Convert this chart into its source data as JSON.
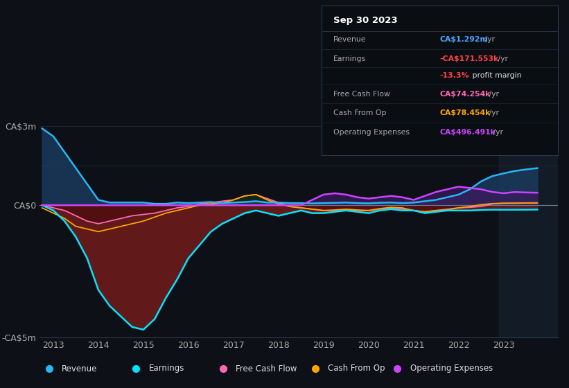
{
  "bg_color": "#0d1117",
  "plot_bg_color": "#0d1117",
  "grid_color": "#1e2a38",
  "zero_line_color": "#4a5568",
  "title_text": "Sep 30 2023",
  "ylim": [
    -5000000,
    3500000
  ],
  "yticks": [
    -5000000,
    0,
    3000000
  ],
  "ytick_labels": [
    "-CA$5m",
    "CA$0",
    "CA$3m"
  ],
  "xlim": [
    2012.7,
    2024.2
  ],
  "xticks": [
    2013,
    2014,
    2015,
    2016,
    2017,
    2018,
    2019,
    2020,
    2021,
    2022,
    2023
  ],
  "legend_items": [
    {
      "label": "Revenue",
      "color": "#29b6f6"
    },
    {
      "label": "Earnings",
      "color": "#00e5ff"
    },
    {
      "label": "Free Cash Flow",
      "color": "#ff69b4"
    },
    {
      "label": "Cash From Op",
      "color": "#ffa500"
    },
    {
      "label": "Operating Expenses",
      "color": "#cc44ff"
    }
  ],
  "series": {
    "x": [
      2012.75,
      2013.0,
      2013.25,
      2013.5,
      2013.75,
      2014.0,
      2014.25,
      2014.5,
      2014.75,
      2015.0,
      2015.25,
      2015.5,
      2015.75,
      2016.0,
      2016.25,
      2016.5,
      2016.75,
      2017.0,
      2017.25,
      2017.5,
      2017.75,
      2018.0,
      2018.25,
      2018.5,
      2018.75,
      2019.0,
      2019.25,
      2019.5,
      2019.75,
      2020.0,
      2020.25,
      2020.5,
      2020.75,
      2021.0,
      2021.25,
      2021.5,
      2021.75,
      2022.0,
      2022.25,
      2022.5,
      2022.75,
      2023.0,
      2023.25,
      2023.5,
      2023.75
    ],
    "revenue": [
      2900000,
      2600000,
      2000000,
      1400000,
      800000,
      200000,
      100000,
      100000,
      100000,
      100000,
      50000,
      50000,
      100000,
      80000,
      100000,
      120000,
      80000,
      100000,
      120000,
      150000,
      100000,
      100000,
      80000,
      80000,
      70000,
      80000,
      90000,
      100000,
      80000,
      70000,
      90000,
      100000,
      80000,
      100000,
      150000,
      200000,
      300000,
      400000,
      600000,
      900000,
      1100000,
      1200000,
      1292000,
      1350000,
      1400000
    ],
    "earnings": [
      0,
      -200000,
      -600000,
      -1200000,
      -2000000,
      -3200000,
      -3800000,
      -4200000,
      -4600000,
      -4700000,
      -4300000,
      -3500000,
      -2800000,
      -2000000,
      -1500000,
      -1000000,
      -700000,
      -500000,
      -300000,
      -200000,
      -300000,
      -400000,
      -300000,
      -200000,
      -300000,
      -300000,
      -250000,
      -200000,
      -250000,
      -300000,
      -200000,
      -150000,
      -200000,
      -200000,
      -300000,
      -250000,
      -200000,
      -200000,
      -200000,
      -180000,
      -170000,
      -172000,
      -171553,
      -170000,
      -165000
    ],
    "free_cash_flow": [
      0,
      -100000,
      -200000,
      -400000,
      -600000,
      -700000,
      -600000,
      -500000,
      -400000,
      -350000,
      -300000,
      -200000,
      -100000,
      -50000,
      50000,
      100000,
      150000,
      200000,
      350000,
      400000,
      250000,
      100000,
      -50000,
      -100000,
      -150000,
      -200000,
      -200000,
      -180000,
      -200000,
      -200000,
      -150000,
      -100000,
      -150000,
      -200000,
      -250000,
      -200000,
      -150000,
      -100000,
      -80000,
      -50000,
      50000,
      70000,
      74254,
      80000,
      80000
    ],
    "cash_from_op": [
      -100000,
      -300000,
      -500000,
      -800000,
      -900000,
      -1000000,
      -900000,
      -800000,
      -700000,
      -600000,
      -450000,
      -300000,
      -200000,
      -100000,
      0,
      50000,
      80000,
      200000,
      350000,
      400000,
      200000,
      50000,
      -50000,
      -100000,
      -150000,
      -200000,
      -180000,
      -150000,
      -180000,
      -200000,
      -130000,
      -80000,
      -100000,
      -200000,
      -250000,
      -200000,
      -180000,
      -100000,
      -50000,
      20000,
      60000,
      75000,
      78454,
      85000,
      90000
    ],
    "operating_expenses": [
      0,
      0,
      0,
      0,
      0,
      0,
      0,
      0,
      0,
      0,
      0,
      0,
      0,
      0,
      0,
      0,
      0,
      0,
      0,
      0,
      0,
      0,
      0,
      0,
      200000,
      400000,
      450000,
      400000,
      300000,
      250000,
      300000,
      350000,
      300000,
      200000,
      350000,
      500000,
      600000,
      700000,
      650000,
      600000,
      500000,
      450000,
      496491,
      480000,
      470000
    ]
  }
}
